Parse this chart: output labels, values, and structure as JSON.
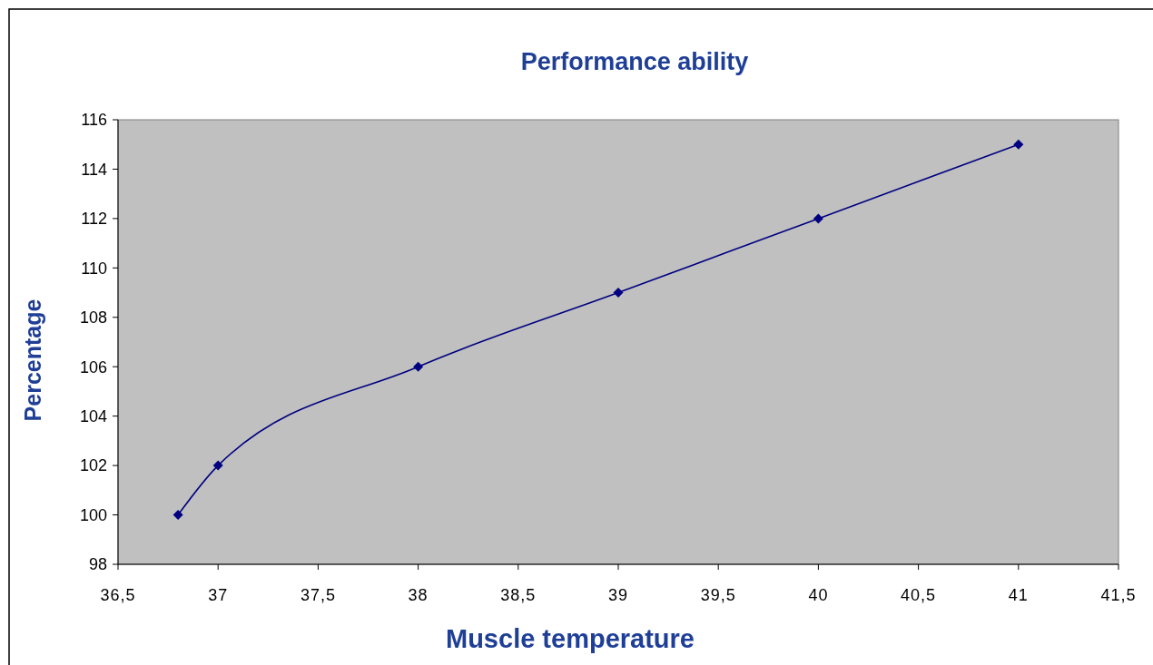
{
  "chart_data": {
    "type": "line",
    "title": "Performance ability",
    "xlabel": "Muscle temperature",
    "ylabel": "Percentage",
    "x": [
      36.8,
      37,
      38,
      39,
      40,
      41
    ],
    "series": [
      {
        "color": "#000080",
        "values": [
          100,
          102,
          106,
          109,
          112,
          115
        ]
      }
    ],
    "xlim": [
      36.5,
      41.5
    ],
    "xticks": [
      {
        "value": 36.5,
        "label": "36,5"
      },
      37,
      {
        "value": 37.5,
        "label": "37,5"
      },
      38,
      {
        "value": 38.5,
        "label": "38,5"
      },
      39,
      {
        "value": 39.5,
        "label": "39,5"
      },
      40,
      {
        "value": 40.5,
        "label": "40,5"
      },
      41,
      {
        "value": 41.5,
        "label": "41,5"
      }
    ],
    "ylim": [
      98,
      116
    ],
    "yticks": [
      98,
      100,
      102,
      104,
      106,
      108,
      110,
      112,
      114,
      116
    ],
    "marker": "diamond",
    "line_style": "solid"
  }
}
